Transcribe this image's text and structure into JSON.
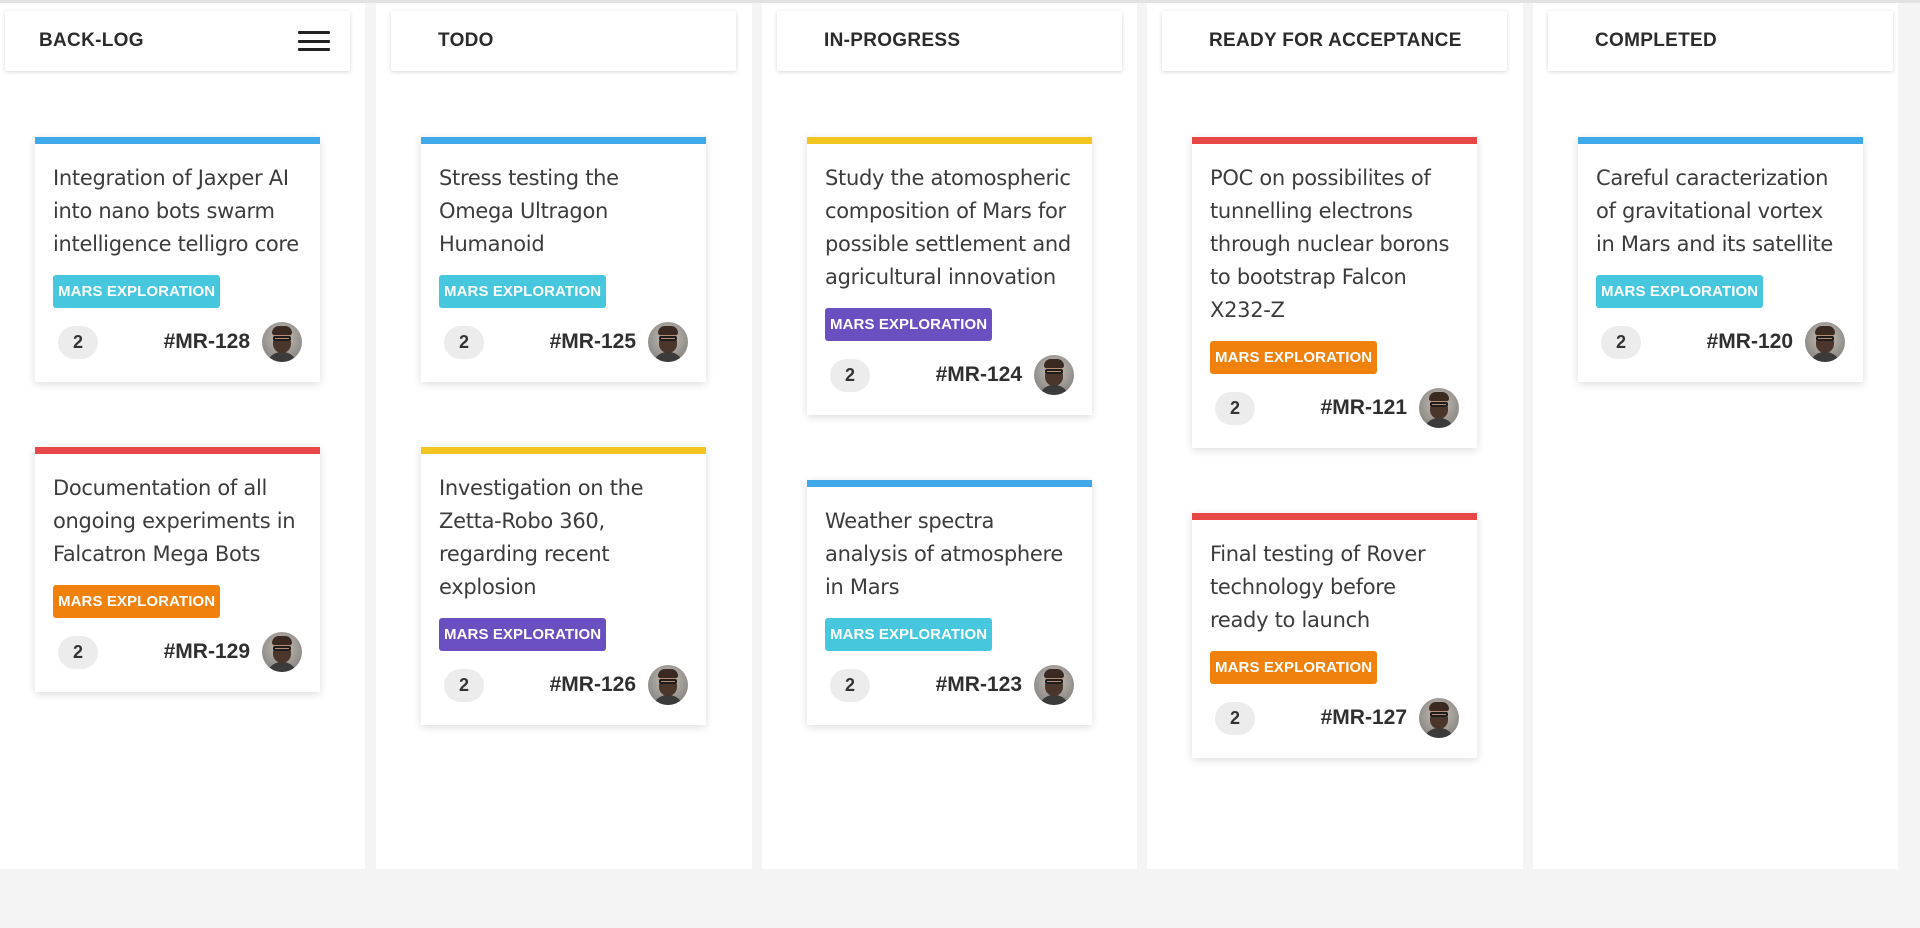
{
  "colors": {
    "tag_cyan": "#46c7dd",
    "tag_purple": "#6a4fc0",
    "tag_orange": "#f0810c",
    "bar_blue": "#3fa9e9",
    "bar_yellow": "#f2c520",
    "bar_red": "#e84747"
  },
  "columns": [
    {
      "title": "BACK-LOG",
      "has_menu": true,
      "cards": [
        {
          "title": "Integration of Jaxper AI into nano bots swarm intelligence telligro core",
          "tag": "MARS EXPLORATION",
          "tag_color": "#46c7dd",
          "bar_color": "#3fa9e9",
          "count": "2",
          "id": "#MR-128",
          "avatar_icon": "avatar-icon"
        },
        {
          "title": "Documentation of all ongoing experiments in Falcatron Mega Bots",
          "tag": "MARS EXPLORATION",
          "tag_color": "#f0810c",
          "bar_color": "#e84747",
          "count": "2",
          "id": "#MR-129",
          "avatar_icon": "avatar-icon"
        }
      ]
    },
    {
      "title": "TODO",
      "has_menu": false,
      "cards": [
        {
          "title": "Stress testing the Omega Ultragon Humanoid",
          "tag": "MARS EXPLORATION",
          "tag_color": "#46c7dd",
          "bar_color": "#3fa9e9",
          "count": "2",
          "id": "#MR-125",
          "avatar_icon": "avatar-icon"
        },
        {
          "title": "Investigation on the Zetta-Robo 360, regarding recent explosion",
          "tag": "MARS EXPLORATION",
          "tag_color": "#6a4fc0",
          "bar_color": "#f2c520",
          "count": "2",
          "id": "#MR-126",
          "avatar_icon": "avatar-icon"
        }
      ]
    },
    {
      "title": "IN-PROGRESS",
      "has_menu": false,
      "cards": [
        {
          "title": "Study the atomospheric composition of Mars for possible settlement and agricultural innovation",
          "tag": "MARS EXPLORATION",
          "tag_color": "#6a4fc0",
          "bar_color": "#f2c520",
          "count": "2",
          "id": "#MR-124",
          "avatar_icon": "avatar-icon"
        },
        {
          "title": "Weather spectra analysis of atmosphere in Mars",
          "tag": "MARS EXPLORATION",
          "tag_color": "#46c7dd",
          "bar_color": "#3fa9e9",
          "count": "2",
          "id": "#MR-123",
          "avatar_icon": "avatar-icon"
        }
      ]
    },
    {
      "title": "READY FOR ACCEPTANCE",
      "has_menu": false,
      "cards": [
        {
          "title": "POC on possibilites of tunnelling electrons through nuclear borons to bootstrap Falcon X232-Z",
          "tag": "MARS EXPLORATION",
          "tag_color": "#f0810c",
          "bar_color": "#e84747",
          "count": "2",
          "id": "#MR-121",
          "avatar_icon": "avatar-icon"
        },
        {
          "title": "Final testing of Rover technology before ready to launch",
          "tag": "MARS EXPLORATION",
          "tag_color": "#f0810c",
          "bar_color": "#e84747",
          "count": "2",
          "id": "#MR-127",
          "avatar_icon": "avatar-icon"
        }
      ]
    },
    {
      "title": "COMPLETED",
      "has_menu": false,
      "cards": [
        {
          "title": "Careful caracterization of gravitational vortex in Mars and its satellite",
          "tag": "MARS EXPLORATION",
          "tag_color": "#46c7dd",
          "bar_color": "#3fa9e9",
          "count": "2",
          "id": "#MR-120",
          "avatar_icon": "avatar-icon"
        }
      ]
    }
  ]
}
